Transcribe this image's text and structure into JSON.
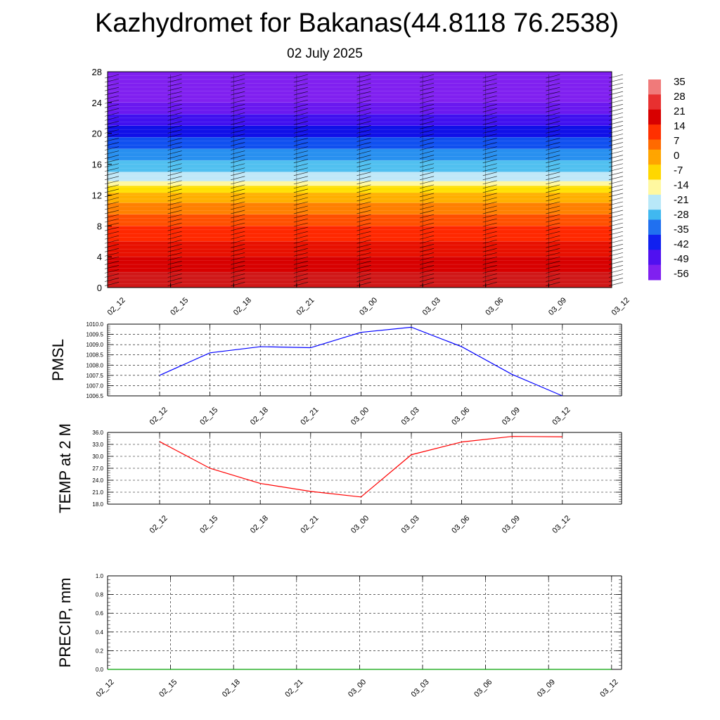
{
  "title": "Kazhydromet for Bakanas(44.8118 76.2538)",
  "subtitle": "02 July 2025",
  "time_labels": [
    "02_12",
    "02_15",
    "02_18",
    "02_21",
    "03_00",
    "03_03",
    "03_06",
    "03_09",
    "03_12"
  ],
  "chart_data": [
    {
      "type": "heatmap",
      "name_hint": "upper-air temperature section",
      "x": [
        "02_12",
        "02_15",
        "02_18",
        "02_21",
        "03_00",
        "03_03",
        "03_06",
        "03_09",
        "03_12"
      ],
      "ylim": [
        0,
        28
      ],
      "yticks": [
        "0",
        "4",
        "8",
        "12",
        "16",
        "20",
        "24",
        "28"
      ],
      "colorbar": {
        "labels": [
          "35",
          "28",
          "21",
          "14",
          "7",
          "0",
          "-7",
          "-14",
          "-21",
          "-28",
          "-35",
          "-42",
          "-49",
          "-56"
        ],
        "colors": [
          "#f07a7a",
          "#e83030",
          "#d80000",
          "#ff3000",
          "#ff6a00",
          "#ffa500",
          "#ffd700",
          "#fff8a0",
          "#b8e8f8",
          "#40b8f0",
          "#2070f0",
          "#1020f0",
          "#5010f0",
          "#8020f0"
        ]
      },
      "bands": [
        {
          "from": 0,
          "to": 2,
          "color": "#d01818"
        },
        {
          "from": 2,
          "to": 4,
          "color": "#d80000"
        },
        {
          "from": 4,
          "to": 6,
          "color": "#e81000"
        },
        {
          "from": 6,
          "to": 8,
          "color": "#ff2800"
        },
        {
          "from": 8,
          "to": 9.5,
          "color": "#ff5000"
        },
        {
          "from": 9.5,
          "to": 11,
          "color": "#ff8000"
        },
        {
          "from": 11,
          "to": 12.3,
          "color": "#ffb000"
        },
        {
          "from": 12.3,
          "to": 13.2,
          "color": "#ffe000"
        },
        {
          "from": 13.2,
          "to": 13.8,
          "color": "#fff8a0"
        },
        {
          "from": 13.8,
          "to": 15,
          "color": "#c0e8f8"
        },
        {
          "from": 15,
          "to": 16.5,
          "color": "#50c0f0"
        },
        {
          "from": 16.5,
          "to": 18,
          "color": "#2890f0"
        },
        {
          "from": 18,
          "to": 19.5,
          "color": "#1050f0"
        },
        {
          "from": 19.5,
          "to": 21,
          "color": "#1010e8"
        },
        {
          "from": 21,
          "to": 22.5,
          "color": "#4010f0"
        },
        {
          "from": 22.5,
          "to": 24,
          "color": "#6a18f0"
        },
        {
          "from": 24,
          "to": 28,
          "color": "#8020f0"
        }
      ]
    },
    {
      "type": "line",
      "ylabel": "PMSL",
      "ylim": [
        1006.5,
        1010.0
      ],
      "yticks": [
        "1006.5",
        "1007.0",
        "1007.5",
        "1008.0",
        "1008.5",
        "1009.0",
        "1009.5",
        "1010.0"
      ],
      "x": [
        "02_12",
        "02_15",
        "02_18",
        "02_21",
        "03_00",
        "03_03",
        "03_06",
        "03_09",
        "03_12"
      ],
      "series": [
        {
          "values": [
            1007.5,
            1008.6,
            1008.9,
            1008.85,
            1009.6,
            1009.85,
            1008.9,
            1007.55,
            1006.5
          ],
          "color": "#0000ff"
        }
      ]
    },
    {
      "type": "line",
      "ylabel": "TEMP at 2 M",
      "ylim": [
        18.0,
        36.0
      ],
      "yticks": [
        "18.0",
        "21.0",
        "24.0",
        "27.0",
        "30.0",
        "33.0",
        "36.0"
      ],
      "x": [
        "02_12",
        "02_15",
        "02_18",
        "02_21",
        "03_00",
        "03_03",
        "03_06",
        "03_09",
        "03_12"
      ],
      "series": [
        {
          "values": [
            33.7,
            27.0,
            23.2,
            21.2,
            19.8,
            30.4,
            33.6,
            35.0,
            34.9
          ],
          "color": "#ff0000"
        }
      ]
    },
    {
      "type": "line",
      "ylabel": "PRECIP, mm",
      "ylim": [
        0.0,
        1.0
      ],
      "yticks": [
        "0.0",
        "0.2",
        "0.4",
        "0.6",
        "0.8",
        "1.0"
      ],
      "x": [
        "02_12",
        "02_15",
        "02_18",
        "02_21",
        "03_00",
        "03_03",
        "03_06",
        "03_09",
        "03_12"
      ],
      "series": [
        {
          "values": [
            0,
            0,
            0,
            0,
            0,
            0,
            0,
            0,
            0
          ],
          "color": "#00a000"
        }
      ]
    }
  ]
}
